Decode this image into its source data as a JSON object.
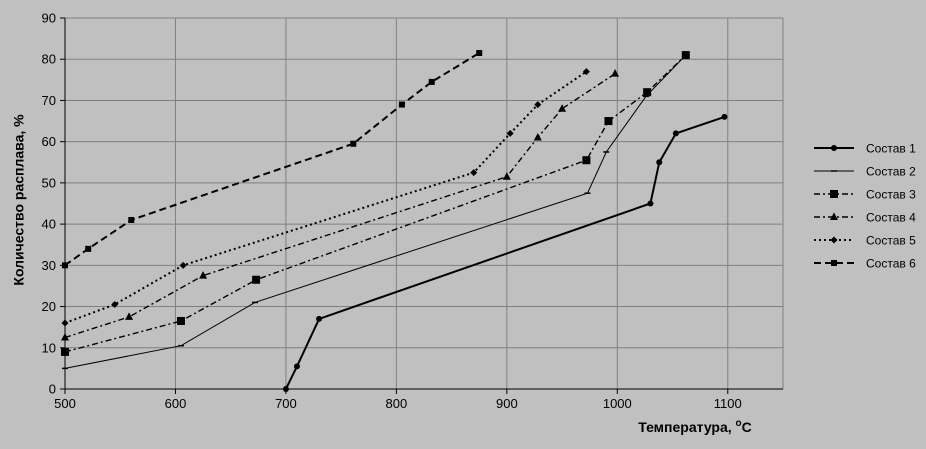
{
  "chart_data": {
    "type": "line",
    "title": "",
    "xlabel": "Температура, ",
    "xlabel_unit_sup": "o",
    "xlabel_unit": "C",
    "ylabel": "Количество расплава, %",
    "xlim": [
      500,
      1150
    ],
    "ylim": [
      0,
      90
    ],
    "x_ticks": [
      "500",
      "600",
      "700",
      "800",
      "900",
      "1000",
      "1100"
    ],
    "y_ticks": [
      "0",
      "10",
      "20",
      "30",
      "40",
      "50",
      "60",
      "70",
      "80",
      "90"
    ],
    "grid": true,
    "legend_position": "right",
    "background_color": "#c0c0c0",
    "plot_area_color": "#c0c0c0",
    "grid_color": "#808080",
    "series": [
      {
        "name": "Состав 1",
        "style": "solid-thick",
        "marker": "circle",
        "x": [
          700,
          710,
          730,
          1030,
          1038,
          1053,
          1097
        ],
        "y": [
          0,
          5.5,
          17,
          45,
          55,
          62,
          66
        ]
      },
      {
        "name": "Состав 2",
        "style": "solid-thin",
        "marker": "dash",
        "x": [
          500,
          605,
          672,
          973,
          990,
          1026,
          1062
        ],
        "y": [
          5,
          10.5,
          21,
          47.5,
          57.5,
          71,
          81
        ]
      },
      {
        "name": "Состав 3",
        "style": "dash-dot",
        "marker": "square",
        "x": [
          500,
          605,
          673,
          972,
          992,
          1027,
          1062
        ],
        "y": [
          9,
          16.5,
          26.5,
          55.5,
          65,
          72,
          81
        ]
      },
      {
        "name": "Состав 4",
        "style": "dash-dot",
        "marker": "triangle",
        "x": [
          500,
          558,
          625,
          900,
          928,
          950,
          998
        ],
        "y": [
          12.5,
          17.5,
          27.5,
          51.5,
          61,
          68,
          76.5
        ]
      },
      {
        "name": "Состав 5",
        "style": "dotted",
        "marker": "diamond",
        "x": [
          500,
          545,
          607,
          870,
          903,
          928,
          972
        ],
        "y": [
          16,
          20.5,
          30,
          52.5,
          62,
          69,
          77
        ]
      },
      {
        "name": "Состав 6",
        "style": "dashed",
        "marker": "square-small",
        "x": [
          500,
          521,
          560,
          761,
          805,
          832,
          875
        ],
        "y": [
          30,
          34,
          41,
          59.5,
          69,
          74.5,
          81.5
        ]
      }
    ]
  }
}
